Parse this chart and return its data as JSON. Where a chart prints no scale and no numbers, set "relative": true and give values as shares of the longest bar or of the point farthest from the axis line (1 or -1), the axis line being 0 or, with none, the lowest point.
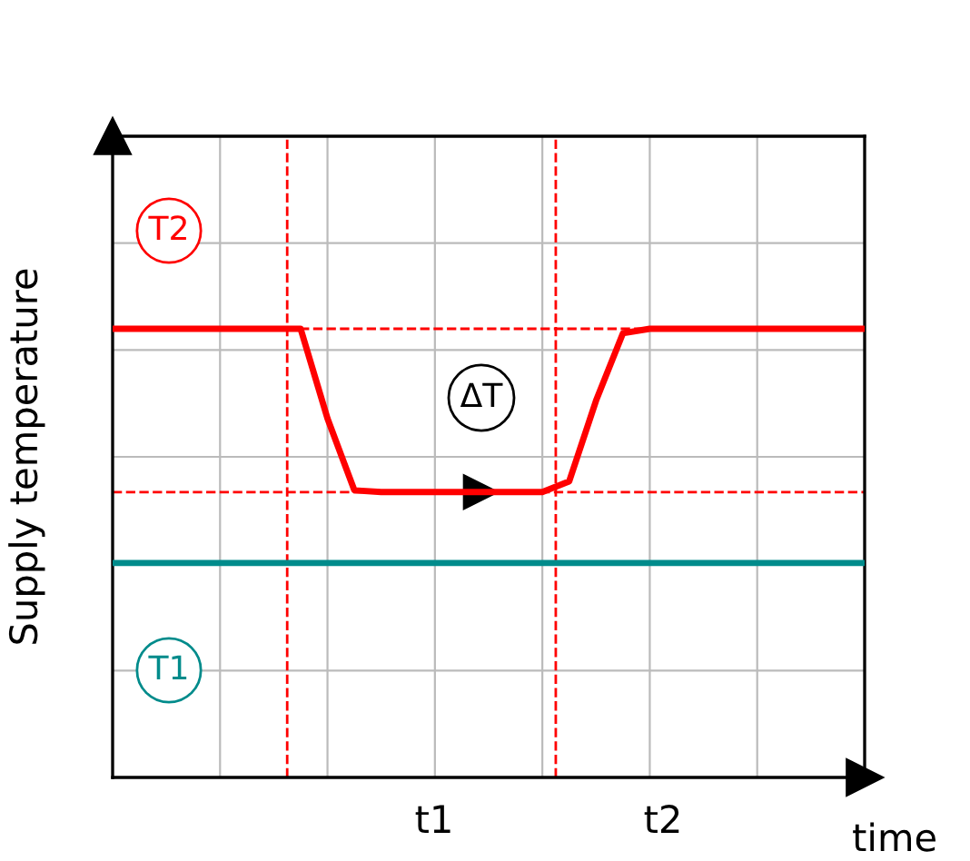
{
  "chart_data": {
    "type": "line",
    "relative": true,
    "xlabel": "time",
    "ylabel": "Supply temperature",
    "categories": [
      null,
      null,
      null,
      null,
      null,
      null,
      null,
      null,
      null,
      null,
      null,
      null,
      null,
      null,
      null,
      null,
      null,
      null,
      null,
      null,
      null,
      null,
      null,
      null,
      null,
      null,
      null,
      null,
      null
    ],
    "series": [
      {
        "color": "#ff0000",
        "values": [
          1,
          1,
          1,
          1,
          1,
          1,
          1,
          1,
          0.8,
          0.64,
          0.636,
          0.636,
          0.636,
          0.636,
          0.636,
          0.636,
          0.636,
          0.66,
          0.84,
          0.99,
          1,
          1,
          1,
          1,
          1,
          1,
          1,
          1,
          1
        ]
      },
      {
        "color": "#008b8b",
        "values": [
          0.478,
          0.478,
          0.478,
          0.478,
          0.478,
          0.478,
          0.478,
          0.478,
          0.478,
          0.478,
          0.478,
          0.478,
          0.478,
          0.478,
          0.478,
          0.478,
          0.478,
          0.478,
          0.478,
          0.478,
          0.478,
          0.478,
          0.478,
          0.478,
          0.478,
          0.478,
          0.478,
          0.478,
          0.478
        ]
      }
    ],
    "ref_lines": [
      {
        "axis": "y",
        "value": 1,
        "color": "#ff0000",
        "line_style": "dashed"
      },
      {
        "axis": "y",
        "value": 0.636,
        "color": "#ff0000",
        "line_style": "dashed"
      }
    ],
    "annotations": [
      "T2",
      "ΔT",
      "T1",
      "t1",
      "t2"
    ],
    "grid": true,
    "marker": "none",
    "line_style": "solid"
  }
}
